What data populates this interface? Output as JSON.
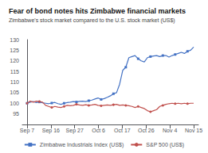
{
  "chart_data": {
    "type": "line",
    "title": "Fear of bond notes hits Zimbabwe financial markets",
    "subtitle": "Zimbabwe's stock market compared to the U.S. stock market (US$)",
    "x": [
      0,
      0.1296,
      0.2593,
      0.3889,
      0.5185,
      0.6481,
      0.7778,
      0.9074,
      1.037,
      1.1667,
      1.2963,
      1.4259,
      1.5556,
      1.6852,
      1.8148,
      1.9444,
      2.0741,
      2.2037,
      2.3333,
      2.463,
      2.5926,
      2.7222,
      2.8519,
      2.9815,
      3.1111,
      3.2407,
      3.3704,
      3.5,
      3.6296,
      3.7593,
      3.8889,
      4.0185,
      4.1481,
      4.2778,
      4.4074,
      4.537,
      4.6667,
      4.7963,
      4.9259,
      5.0556,
      5.1852,
      5.3148,
      5.4444,
      5.5741,
      5.7037,
      5.8333,
      5.963,
      6.0926,
      6.2222,
      6.3519,
      6.4815,
      6.6111,
      6.7407,
      6.8704,
      7
    ],
    "xlim": [
      -0.2,
      7.2
    ],
    "xticks": [
      {
        "value": 0,
        "label": "Sep 7"
      },
      {
        "value": 1,
        "label": "Sep 16"
      },
      {
        "value": 2,
        "label": "Sep 27"
      },
      {
        "value": 3,
        "label": "Oct 6"
      },
      {
        "value": 4,
        "label": "Oct 17"
      },
      {
        "value": 5,
        "label": "Oct 26"
      },
      {
        "value": 6,
        "label": "Nov 4"
      },
      {
        "value": 7,
        "label": "Nov 15"
      }
    ],
    "ylim": [
      90,
      130
    ],
    "yticks": [
      95,
      100,
      105,
      110,
      115,
      120,
      125,
      130
    ],
    "grid": false,
    "legend": "bottom",
    "series": [
      {
        "name": "Zimbabwe Industrials Index (US$)",
        "color": "#4472C4",
        "marker": "square",
        "values": [
          100.0,
          100.5,
          100.8,
          100.3,
          100.6,
          100.2,
          100.0,
          99.8,
          100.1,
          100.4,
          99.8,
          99.5,
          100.0,
          100.3,
          100.5,
          100.8,
          100.6,
          100.9,
          101.0,
          100.8,
          101.2,
          101.5,
          102.0,
          102.5,
          101.8,
          102.2,
          102.8,
          103.5,
          104.5,
          105.0,
          109.0,
          115.5,
          117.0,
          121.5,
          122.0,
          122.5,
          121.0,
          120.0,
          119.5,
          121.5,
          122.0,
          122.3,
          122.5,
          122.0,
          122.5,
          122.5,
          121.8,
          122.5,
          123.0,
          123.5,
          124.0,
          123.5,
          124.5,
          125.0,
          126.5
        ]
      },
      {
        "name": "S&P 500 (US$)",
        "color": "#C0504D",
        "marker": "circle",
        "values": [
          100.0,
          101.0,
          100.5,
          101.0,
          100.8,
          100.5,
          99.0,
          98.5,
          98.0,
          98.5,
          98.2,
          98.0,
          98.5,
          99.0,
          98.8,
          99.0,
          99.5,
          99.2,
          99.0,
          99.3,
          99.0,
          99.2,
          99.5,
          99.0,
          98.8,
          99.0,
          99.2,
          99.0,
          99.3,
          99.5,
          99.0,
          99.2,
          99.0,
          98.8,
          98.5,
          98.0,
          98.5,
          98.0,
          97.5,
          96.5,
          96.0,
          96.5,
          97.0,
          98.5,
          99.0,
          99.5,
          99.8,
          100.0,
          99.8,
          100.0,
          99.8,
          100.0,
          99.8,
          100.0,
          100.0
        ]
      }
    ]
  }
}
